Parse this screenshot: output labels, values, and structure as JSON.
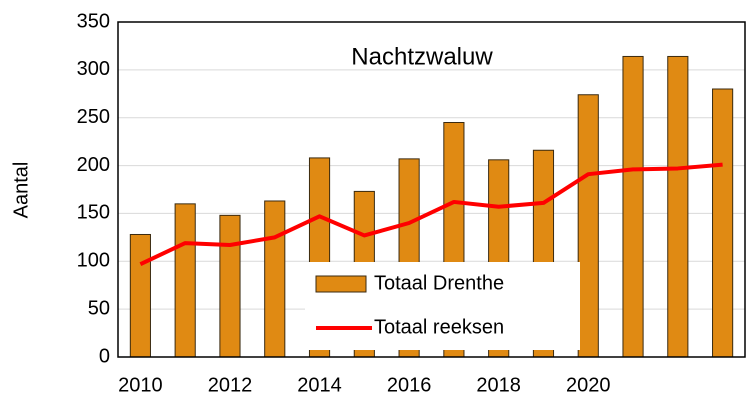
{
  "chart_data": {
    "type": "combo",
    "title": "Nachtzwaluw",
    "y_label": "Aantal",
    "categories": [
      "2010",
      null,
      "2012",
      null,
      "2014",
      null,
      "2016",
      null,
      "2018",
      null,
      "2020",
      null,
      null,
      null
    ],
    "series": [
      {
        "name": "Totaal Drenthe",
        "type": "bar",
        "color": "#e08a13",
        "values": [
          128,
          160,
          148,
          163,
          208,
          173,
          207,
          245,
          206,
          216,
          274,
          314,
          314,
          280
        ]
      },
      {
        "name": "Totaal reeksen",
        "type": "line",
        "color": "#ff0000",
        "values": [
          97,
          119,
          117,
          125,
          147,
          127,
          140,
          162,
          157,
          161,
          191,
          196,
          197,
          201
        ]
      }
    ],
    "ylim": [
      0,
      350
    ],
    "yticks": [
      0,
      50,
      100,
      150,
      200,
      250,
      300,
      350
    ],
    "grid": true
  }
}
